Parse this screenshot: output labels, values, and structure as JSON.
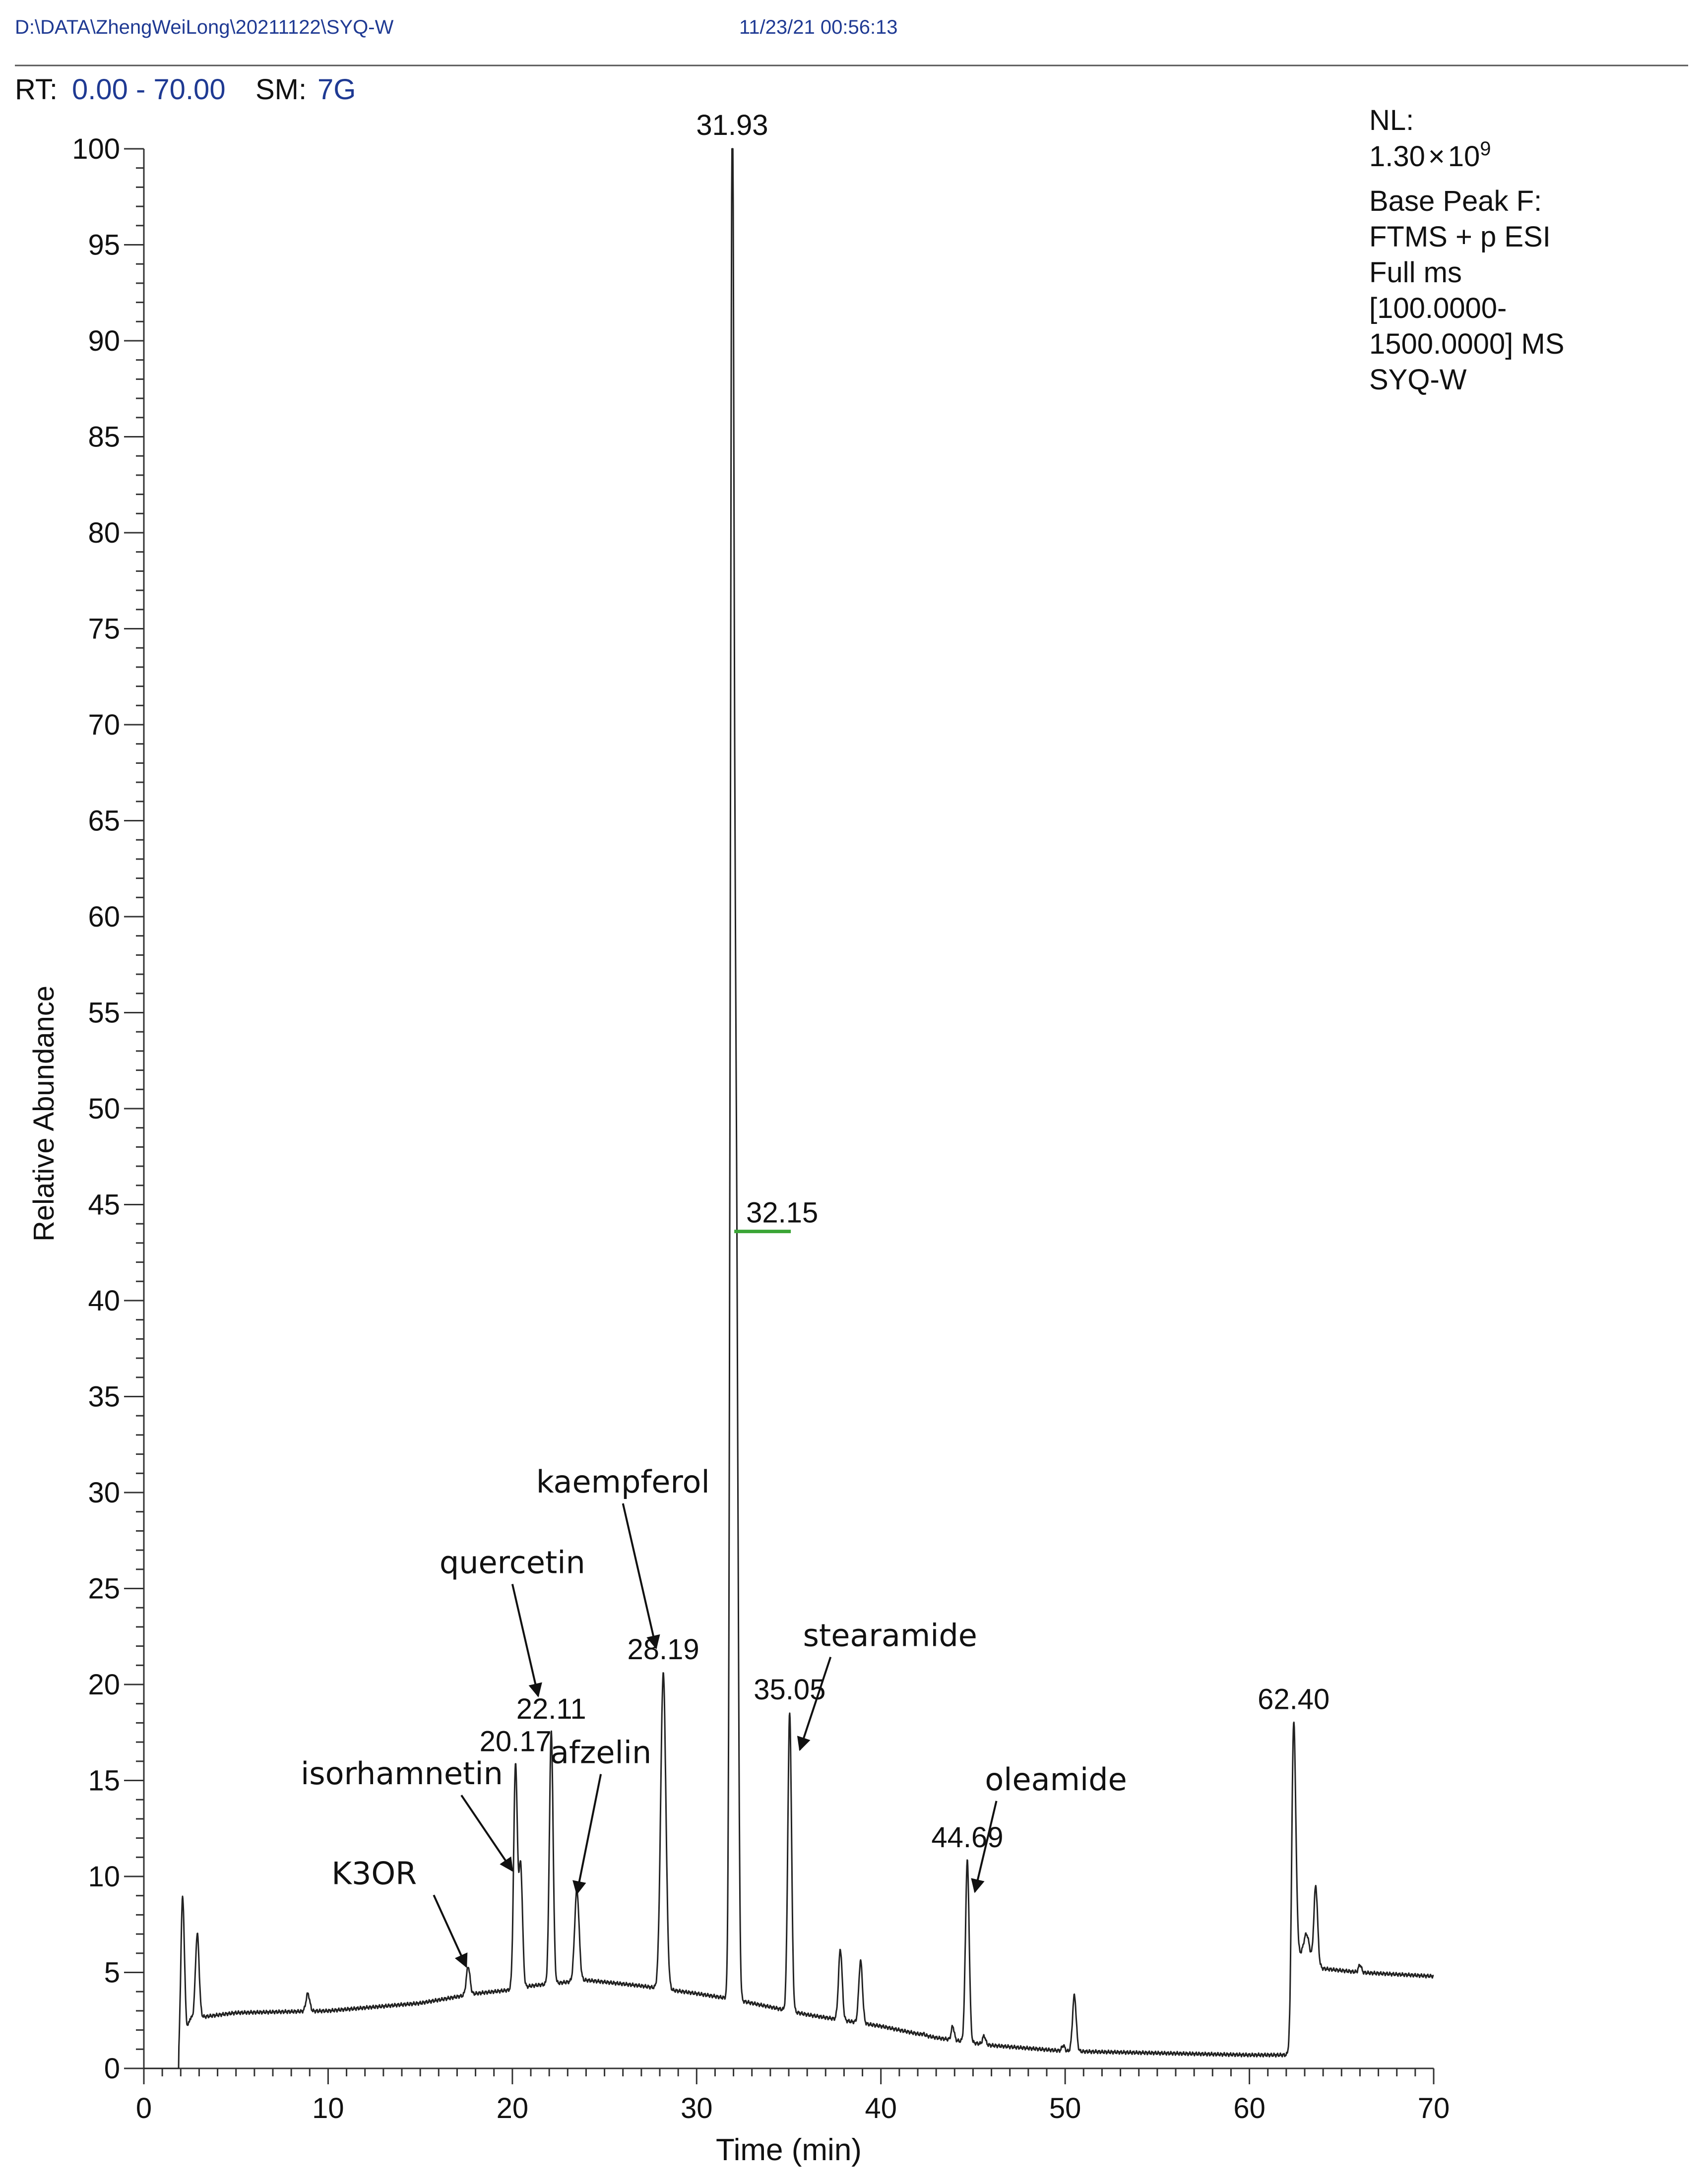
{
  "header": {
    "file_path": "D:\\DATA\\ZhengWeiLong\\20211122\\SYQ-W",
    "timestamp": "11/23/21 00:56:13"
  },
  "range_bar": {
    "rt_label": "RT:",
    "rt_value": "0.00 - 70.00",
    "sm_label": "SM:",
    "sm_value": "7G"
  },
  "info_box": {
    "nl_label": "NL:",
    "nl_mantissa": "1.30",
    "nl_times": "×",
    "nl_base": "10",
    "nl_exponent": "9",
    "line1": "Base Peak F:",
    "line2": "FTMS + p ESI",
    "line3": "Full ms",
    "line4": "[100.0000-",
    "line5": "1500.0000] MS",
    "line6": "SYQ-W"
  },
  "chart_data": {
    "type": "line",
    "title": "",
    "xlabel": "Time (min)",
    "ylabel": "Relative Abundance",
    "xlim": [
      0,
      70
    ],
    "ylim": [
      0,
      100
    ],
    "x_ticks": [
      0,
      10,
      20,
      30,
      40,
      50,
      60,
      70
    ],
    "y_ticks": [
      0,
      5,
      10,
      15,
      20,
      25,
      30,
      35,
      40,
      45,
      50,
      55,
      60,
      65,
      70,
      75,
      80,
      85,
      90,
      95,
      100
    ],
    "series": [
      {
        "name": "Base Peak",
        "color": "#222222",
        "baseline": [
          [
            0,
            0
          ],
          [
            1.9,
            0
          ],
          [
            2.5,
            2.6
          ],
          [
            5,
            2.9
          ],
          [
            10,
            3.0
          ],
          [
            15,
            3.4
          ],
          [
            18,
            3.9
          ],
          [
            20,
            4.1
          ],
          [
            21,
            4.3
          ],
          [
            24,
            4.6
          ],
          [
            27,
            4.3
          ],
          [
            30,
            3.9
          ],
          [
            32,
            3.6
          ],
          [
            34,
            3.2
          ],
          [
            36,
            2.8
          ],
          [
            40,
            2.2
          ],
          [
            43,
            1.6
          ],
          [
            46,
            1.2
          ],
          [
            50,
            0.9
          ],
          [
            55,
            0.8
          ],
          [
            60,
            0.7
          ],
          [
            62.2,
            0.7
          ],
          [
            62.6,
            6.0
          ],
          [
            64,
            5.2
          ],
          [
            66,
            5.0
          ],
          [
            70,
            4.8
          ]
        ],
        "peaks": [
          {
            "x": 2.1,
            "y": 8.9,
            "w": 0.1
          },
          {
            "x": 2.9,
            "y": 7.0,
            "w": 0.1
          },
          {
            "x": 8.9,
            "y": 3.9,
            "w": 0.1
          },
          {
            "x": 17.6,
            "y": 5.3,
            "w": 0.1
          },
          {
            "x": 20.17,
            "y": 15.8,
            "w": 0.1
          },
          {
            "x": 20.45,
            "y": 10.5,
            "w": 0.1
          },
          {
            "x": 22.11,
            "y": 17.5,
            "w": 0.1
          },
          {
            "x": 23.5,
            "y": 9.3,
            "w": 0.12
          },
          {
            "x": 28.19,
            "y": 20.6,
            "w": 0.14
          },
          {
            "x": 31.93,
            "y": 100.0,
            "w": 0.1
          },
          {
            "x": 32.15,
            "y": 42.5,
            "w": 0.1
          },
          {
            "x": 35.05,
            "y": 18.5,
            "w": 0.1
          },
          {
            "x": 37.8,
            "y": 6.2,
            "w": 0.1
          },
          {
            "x": 38.9,
            "y": 5.6,
            "w": 0.1
          },
          {
            "x": 42.3,
            "y": 1.8,
            "w": 0.08
          },
          {
            "x": 43.9,
            "y": 2.2,
            "w": 0.08
          },
          {
            "x": 44.69,
            "y": 10.8,
            "w": 0.1
          },
          {
            "x": 45.6,
            "y": 1.7,
            "w": 0.08
          },
          {
            "x": 49.9,
            "y": 1.2,
            "w": 0.08
          },
          {
            "x": 50.5,
            "y": 3.8,
            "w": 0.1
          },
          {
            "x": 62.4,
            "y": 18.0,
            "w": 0.11
          },
          {
            "x": 63.1,
            "y": 7.0,
            "w": 0.15
          },
          {
            "x": 63.6,
            "y": 9.5,
            "w": 0.1
          },
          {
            "x": 66.0,
            "y": 5.4,
            "w": 0.08
          }
        ]
      }
    ],
    "peak_labels": [
      {
        "text": "31.93",
        "x": 31.93,
        "y": 100.0
      },
      {
        "text": "32.15",
        "x": 32.15,
        "y": 43.6,
        "green_bar": true
      },
      {
        "text": "22.11",
        "x": 22.11,
        "y": 17.5
      },
      {
        "text": "20.17",
        "x": 20.17,
        "y": 15.8
      },
      {
        "text": "28.19",
        "x": 28.19,
        "y": 20.6
      },
      {
        "text": "35.05",
        "x": 35.05,
        "y": 18.5
      },
      {
        "text": "44.69",
        "x": 44.69,
        "y": 10.8
      },
      {
        "text": "62.40",
        "x": 62.4,
        "y": 18.0
      }
    ],
    "annotations": [
      {
        "text": "kaempferol",
        "text_x": 26.0,
        "text_y": 30.0,
        "arrow_to_x": 27.8,
        "arrow_to_y": 21.9
      },
      {
        "text": "quercetin",
        "text_x": 20.0,
        "text_y": 25.8,
        "arrow_to_x": 21.4,
        "arrow_to_y": 19.4
      },
      {
        "text": "isorhamnetin",
        "text_x": 14.0,
        "text_y": 14.8,
        "arrow_to_x": 20.0,
        "arrow_to_y": 10.3
      },
      {
        "text": "afzelin",
        "text_x": 24.8,
        "text_y": 15.9,
        "arrow_to_x": 23.5,
        "arrow_to_y": 9.1
      },
      {
        "text": "K3OR",
        "text_x": 12.5,
        "text_y": 9.6,
        "arrow_to_x": 17.5,
        "arrow_to_y": 5.3
      },
      {
        "text": "stearamide",
        "text_x": 40.5,
        "text_y": 22.0,
        "arrow_to_x": 35.6,
        "arrow_to_y": 16.6
      },
      {
        "text": "oleamide",
        "text_x": 49.5,
        "text_y": 14.5,
        "arrow_to_x": 45.1,
        "arrow_to_y": 9.2
      }
    ]
  }
}
